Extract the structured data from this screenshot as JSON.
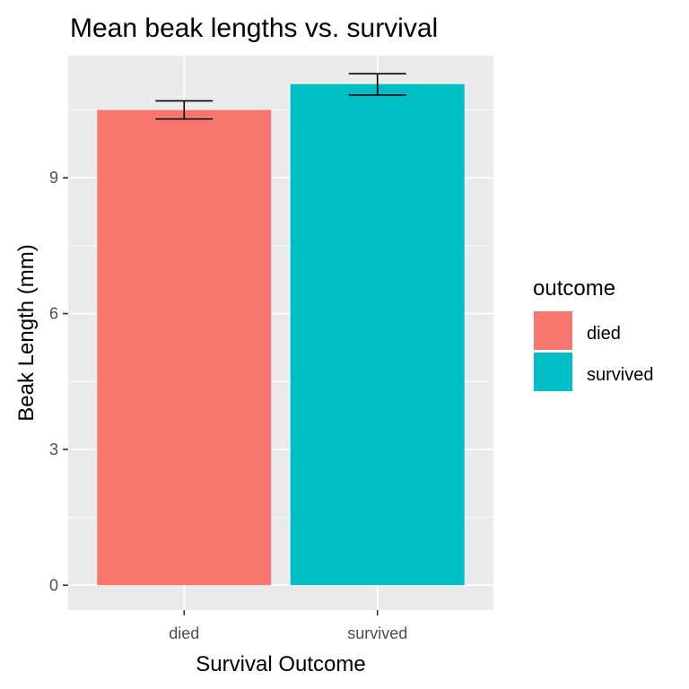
{
  "chart_data": {
    "type": "bar",
    "title": "Mean beak lengths vs. survival",
    "xlabel": "Survival Outcome",
    "ylabel": "Beak Length (mm)",
    "categories": [
      "died",
      "survived"
    ],
    "values": [
      10.5,
      11.07
    ],
    "error_low": [
      10.3,
      10.83
    ],
    "error_high": [
      10.7,
      11.3
    ],
    "colors": [
      "#F8766D",
      "#00BFC4"
    ],
    "ylim": [
      -0.55,
      11.7
    ],
    "yticks": [
      0,
      3,
      6,
      9
    ],
    "ytick_labels": [
      "0",
      "3",
      "6",
      "9"
    ],
    "grid": true,
    "panel_background": "#EBEBEB",
    "legend": {
      "title": "outcome",
      "position": "right",
      "entries": [
        "died",
        "survived"
      ]
    }
  }
}
